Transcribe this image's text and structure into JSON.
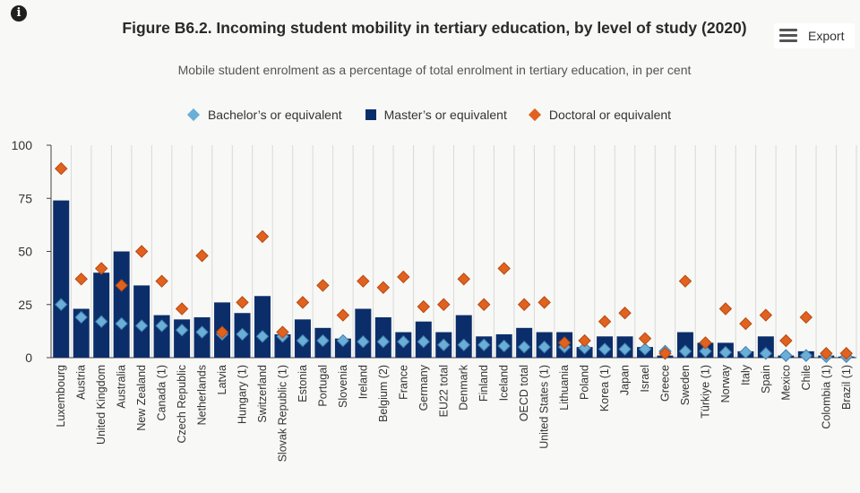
{
  "header": {
    "info_icon": "info-icon",
    "title": "Figure B6.2. Incoming student mobility in tertiary education, by level of study (2020)",
    "subtitle": "Mobile student enrolment as a percentage of total enrolment in tertiary education, in per cent",
    "export_label": "Export",
    "export_icon": "hamburger-menu-icon"
  },
  "colors": {
    "bachelor": "#6baed6",
    "bachelor_stroke": "#3f7fb0",
    "master": "#0b2e6a",
    "doctoral": "#e1611f",
    "doctoral_stroke": "#b44a12",
    "grid": "#d9d9d9",
    "axis": "#444444"
  },
  "chart_data": {
    "type": "bar",
    "ylim": [
      0,
      100
    ],
    "yticks": [
      0,
      25,
      50,
      75,
      100
    ],
    "grid": "vertical-category-separators",
    "legend_position": "top-center",
    "categories": [
      "Luxembourg",
      "Austria",
      "United Kingdom",
      "Australia",
      "New Zealand",
      "Canada (1)",
      "Czech Republic",
      "Netherlands",
      "Latvia",
      "Hungary (1)",
      "Switzerland",
      "Slovak Republic (1)",
      "Estonia",
      "Portugal",
      "Slovenia",
      "Ireland",
      "Belgium (2)",
      "France",
      "Germany",
      "EU22 total",
      "Denmark",
      "Finland",
      "Iceland",
      "OECD total",
      "United States (1)",
      "Lithuania",
      "Poland",
      "Korea (1)",
      "Japan",
      "Israel",
      "Greece",
      "Sweden",
      "Türkiye (1)",
      "Norway",
      "Italy",
      "Spain",
      "Mexico",
      "Chile",
      "Colombia (1)",
      "Brazil (1)"
    ],
    "series": [
      {
        "name": "Bachelor’s or equivalent",
        "mark": "diamond",
        "values": [
          25,
          19,
          17,
          16,
          15,
          15,
          13,
          12,
          11,
          11,
          10,
          10,
          8,
          8,
          8,
          7.5,
          7.5,
          7.5,
          7.5,
          6,
          6,
          6,
          5.5,
          5,
          5,
          5,
          4.5,
          4,
          4,
          4,
          3,
          3,
          3,
          2.5,
          2.5,
          2,
          1,
          1,
          0.5,
          0.5
        ]
      },
      {
        "name": "Master’s or equivalent",
        "mark": "bar",
        "values": [
          74,
          23,
          40,
          50,
          34,
          20,
          18,
          19,
          26,
          21,
          29,
          11,
          18,
          14,
          9,
          23,
          19,
          12,
          17,
          12,
          20,
          10,
          11,
          14,
          12,
          12,
          5,
          10,
          10,
          5,
          1,
          12,
          7,
          7,
          3,
          10,
          1,
          3,
          1,
          0.5
        ]
      },
      {
        "name": "Doctoral or equivalent",
        "mark": "diamond",
        "values": [
          89,
          37,
          42,
          34,
          50,
          36,
          23,
          48,
          12,
          26,
          57,
          12,
          26,
          34,
          20,
          36,
          33,
          38,
          24,
          25,
          37,
          25,
          42,
          25,
          26,
          7,
          8,
          17,
          21,
          9,
          2,
          36,
          7,
          23,
          16,
          20,
          8,
          19,
          2,
          2
        ]
      }
    ]
  }
}
